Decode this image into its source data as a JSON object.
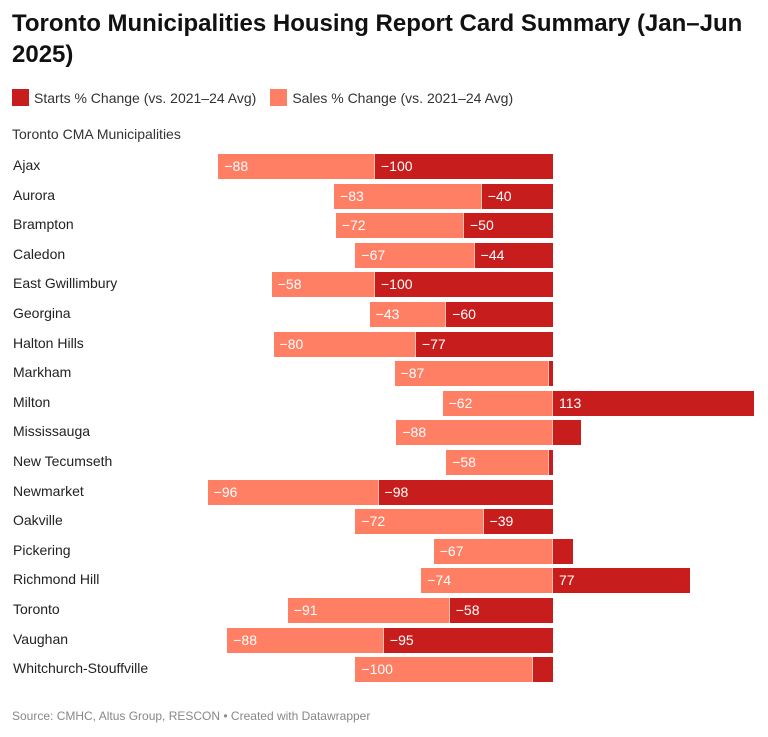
{
  "title": "Toronto Municipalities Housing Report Card Summary (Jan–Jun 2025)",
  "source": "Source: CMHC, Altus Group, RESCON • Created with Datawrapper",
  "chart_data": {
    "type": "bar",
    "orientation": "horizontal",
    "stacked": true,
    "column_header": "Toronto CMA Municipalities",
    "legend_position": "top-left",
    "grid": false,
    "categories": [
      "Ajax",
      "Aurora",
      "Brampton",
      "Caledon",
      "East Gwillimbury",
      "Georgina",
      "Halton Hills",
      "Markham",
      "Milton",
      "Mississauga",
      "New Tecumseth",
      "Newmarket",
      "Oakville",
      "Pickering",
      "Richmond Hill",
      "Toronto",
      "Vaughan",
      "Whitchurch-Stouffville"
    ],
    "series": [
      {
        "name": "Starts % Change (vs. 2021–24 Avg)",
        "color": "#c71e1d",
        "values": [
          -100,
          -40,
          -50,
          -44,
          -100,
          -60,
          -77,
          -2,
          113,
          16,
          -2,
          -98,
          -39,
          11,
          77,
          -58,
          -95,
          -11
        ]
      },
      {
        "name": "Sales % Change (vs. 2021–24 Avg)",
        "color": "#ff7f65",
        "values": [
          -88,
          -83,
          -72,
          -67,
          -58,
          -43,
          -80,
          -87,
          -62,
          -88,
          -58,
          -96,
          -72,
          -67,
          -74,
          -91,
          -88,
          -100
        ]
      }
    ]
  }
}
